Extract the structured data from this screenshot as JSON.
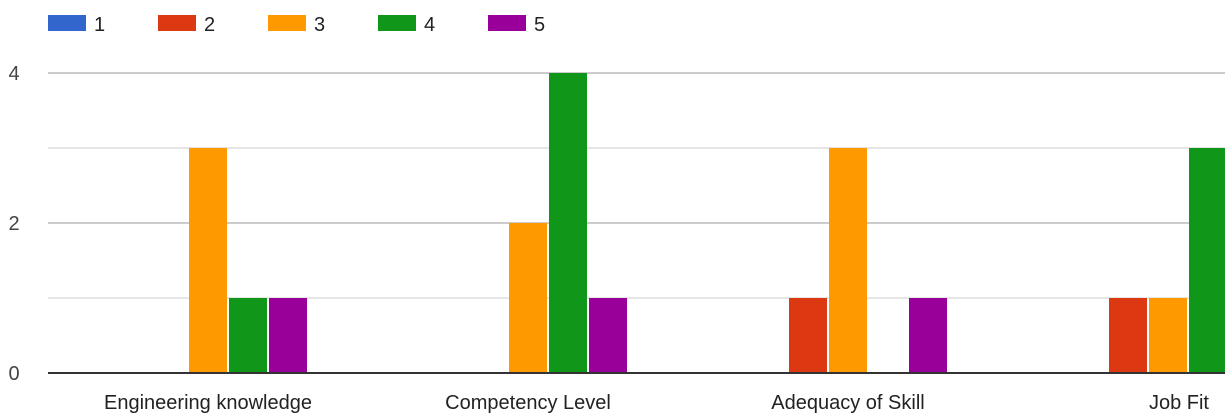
{
  "chart_data": {
    "type": "bar",
    "title": "",
    "xlabel": "",
    "ylabel": "",
    "categories": [
      "Engineering knowledge",
      "Competency Level",
      "Adequacy of Skill",
      "Job Fit"
    ],
    "series": [
      {
        "name": "1",
        "color": "#3366cc",
        "values": [
          0,
          0,
          0,
          0
        ]
      },
      {
        "name": "2",
        "color": "#dc3912",
        "values": [
          0,
          0,
          1,
          1
        ]
      },
      {
        "name": "3",
        "color": "#ff9900",
        "values": [
          3,
          2,
          3,
          1
        ]
      },
      {
        "name": "4",
        "color": "#109618",
        "values": [
          1,
          4,
          0,
          3
        ]
      },
      {
        "name": "5",
        "color": "#990099",
        "values": [
          1,
          1,
          1,
          0
        ]
      }
    ],
    "ylim": [
      0,
      4
    ],
    "yticks": [
      "0",
      "2",
      "4"
    ],
    "grid": true,
    "legend_position": "top-left"
  }
}
